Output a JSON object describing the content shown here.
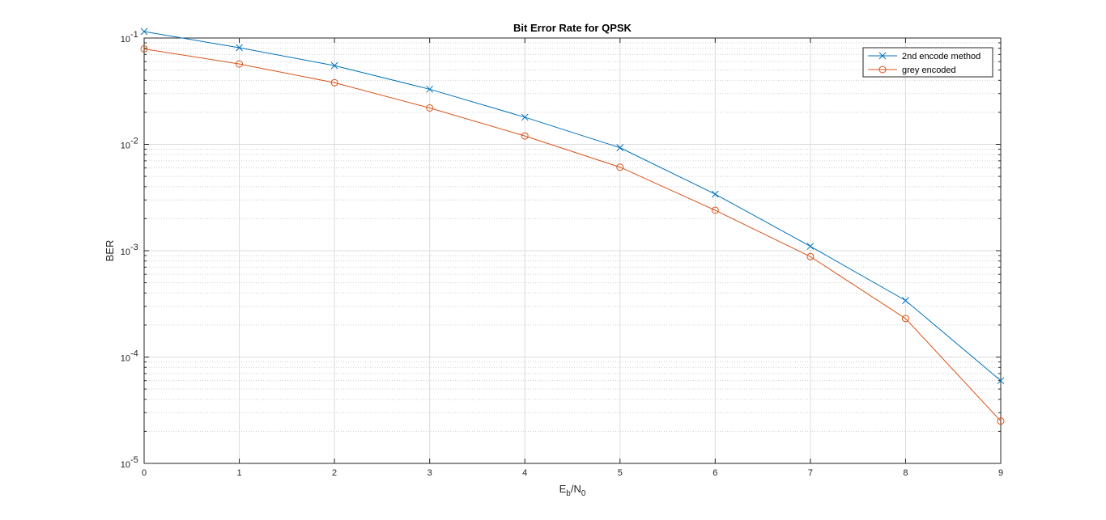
{
  "chart_data": {
    "type": "line",
    "title": "Bit Error Rate for QPSK",
    "xlabel": {
      "base": "E",
      "sub1": "b",
      "mid": "/N",
      "sub2": "0"
    },
    "ylabel": "BER",
    "x": [
      0,
      1,
      2,
      3,
      4,
      5,
      6,
      7,
      8,
      9
    ],
    "xlim": [
      0,
      9
    ],
    "ylim": [
      1e-05,
      0.1
    ],
    "yscale": "log",
    "grid": true,
    "legend_position": "top-right",
    "x_tick_labels": [
      "0",
      "1",
      "2",
      "3",
      "4",
      "5",
      "6",
      "7",
      "8",
      "9"
    ],
    "y_ticks": [
      {
        "base": "10",
        "exp": "-5",
        "value": 1e-05
      },
      {
        "base": "10",
        "exp": "-4",
        "value": 0.0001
      },
      {
        "base": "10",
        "exp": "-3",
        "value": 0.001
      },
      {
        "base": "10",
        "exp": "-2",
        "value": 0.01
      },
      {
        "base": "10",
        "exp": "-1",
        "value": 0.1
      }
    ],
    "series": [
      {
        "name": "2nd encode method",
        "color": "#0072BD",
        "marker": "x",
        "values": [
          0.115,
          0.081,
          0.055,
          0.033,
          0.018,
          0.0093,
          0.0034,
          0.0011,
          0.00034,
          6e-05
        ]
      },
      {
        "name": "grey encoded",
        "color": "#D95319",
        "marker": "o",
        "values": [
          0.079,
          0.057,
          0.038,
          0.022,
          0.012,
          0.0061,
          0.0024,
          0.00088,
          0.00023,
          2.5e-05
        ]
      }
    ]
  }
}
